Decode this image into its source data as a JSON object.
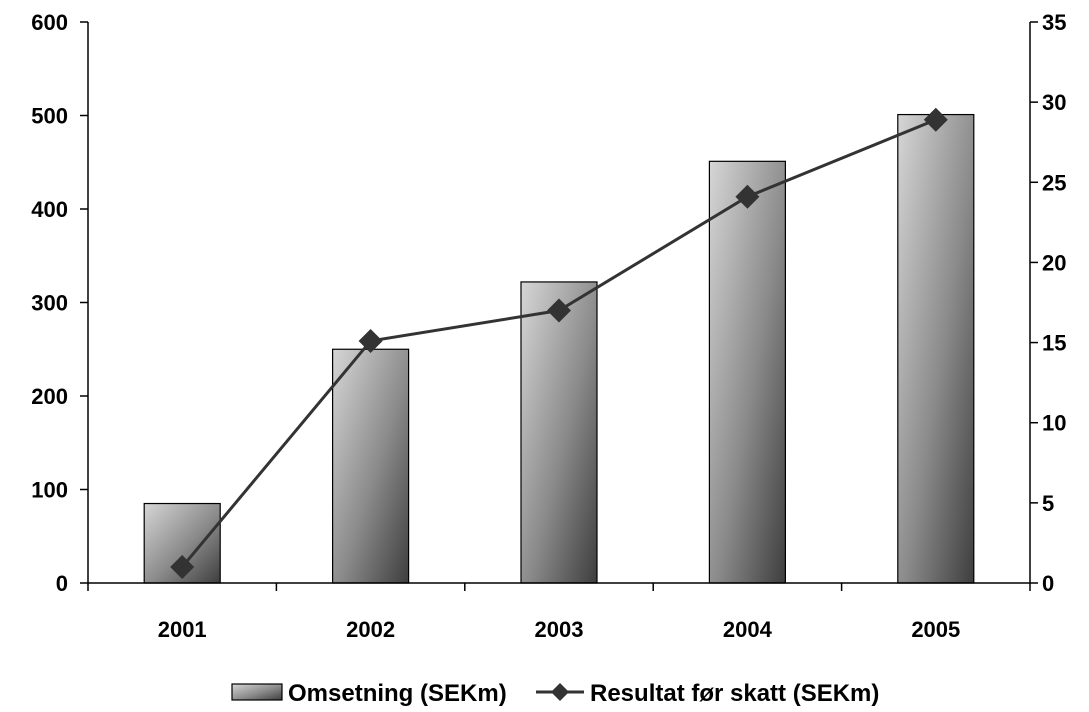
{
  "chart_data": {
    "type": "bar",
    "categories": [
      "2001",
      "2002",
      "2003",
      "2004",
      "2005"
    ],
    "series": [
      {
        "name": "Omsetning (SEKm)",
        "type": "bar",
        "axis": "left",
        "values": [
          85,
          250,
          322,
          451,
          501
        ]
      },
      {
        "name": "Resultat før skatt (SEKm)",
        "type": "line",
        "axis": "right",
        "marker": "diamond",
        "values": [
          1,
          15.1,
          17,
          24.1,
          28.9
        ]
      }
    ],
    "y_left": {
      "min": 0,
      "max": 600,
      "step": 100,
      "tick_labels": [
        "0",
        "100",
        "200",
        "300",
        "400",
        "500",
        "600"
      ]
    },
    "y_right": {
      "min": 0,
      "max": 35,
      "step": 5,
      "tick_labels": [
        "0",
        "5",
        "10",
        "15",
        "20",
        "25",
        "30",
        "35"
      ]
    },
    "grid": false,
    "legend_position": "bottom",
    "colors": {
      "bar_light": "#cfcfcf",
      "bar_dark": "#4a4a4a",
      "line": "#333333",
      "marker": "#333333"
    }
  }
}
